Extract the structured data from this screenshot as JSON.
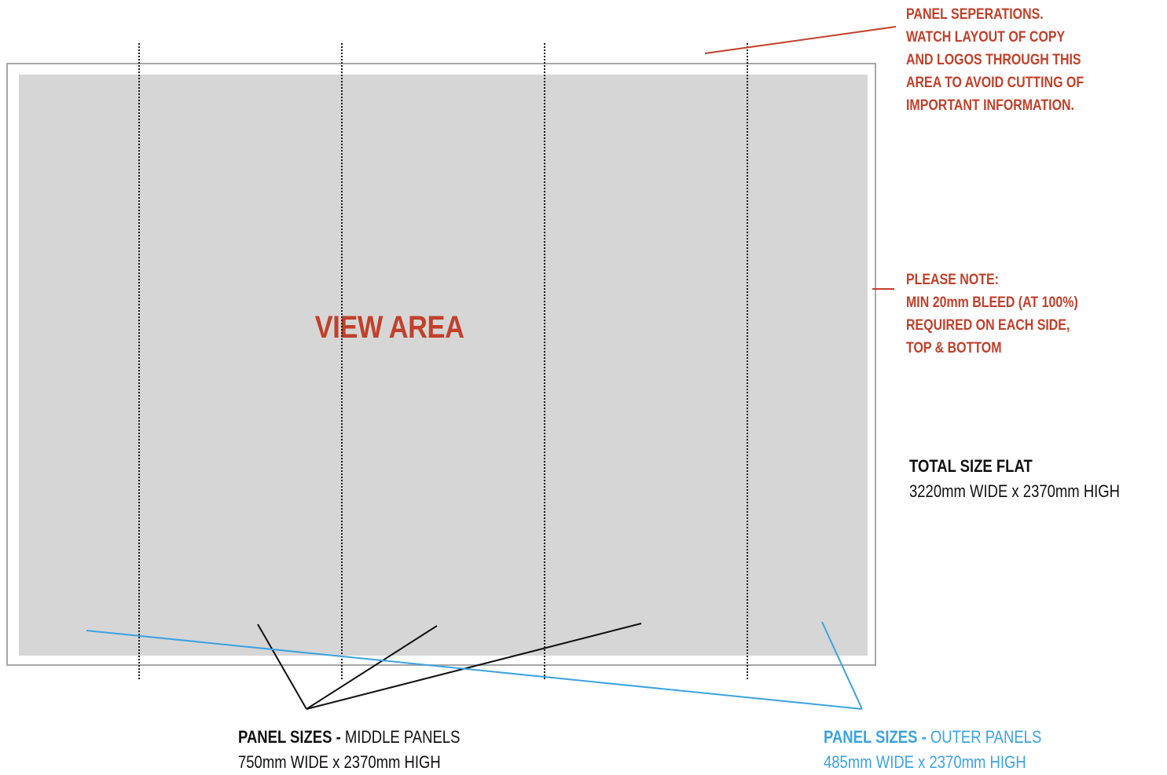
{
  "view_area": {
    "label": "VIEW AREA"
  },
  "notes": {
    "panel_separations": {
      "lines": [
        "PANEL SEPERATIONS.",
        "WATCH LAYOUT OF COPY",
        "AND LOGOS THROUGH THIS",
        "AREA TO AVOID CUTTING OF",
        "IMPORTANT INFORMATION."
      ]
    },
    "bleed": {
      "lines": [
        "PLEASE NOTE:",
        "MIN 20mm BLEED (AT 100%)",
        "REQUIRED ON EACH SIDE,",
        "TOP & BOTTOM"
      ]
    }
  },
  "total_size": {
    "title": "TOTAL SIZE FLAT",
    "value": "3220mm WIDE x 2370mm HIGH"
  },
  "panel_sizes": {
    "middle": {
      "prefix": "PANEL SIZES - ",
      "name": "MIDDLE PANELS",
      "value": "750mm WIDE x 2370mm HIGH"
    },
    "outer": {
      "prefix": "PANEL SIZES - ",
      "name": "OUTER PANELS",
      "value": "485mm WIDE x 2370mm HIGH"
    }
  },
  "colors": {
    "note_red": "#c1402a",
    "outer_blue": "#3aa3e3",
    "view_area_grey": "#d6d6d6",
    "frame_grey": "#a6a6a6"
  }
}
